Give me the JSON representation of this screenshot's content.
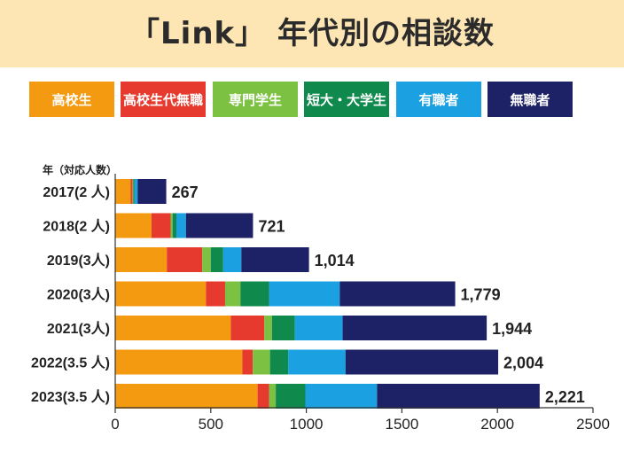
{
  "header": {
    "title": "「Link」 年代別の相談数"
  },
  "legend": [
    {
      "label": "高校生",
      "color": "#f39a10"
    },
    {
      "label": "高校生代無職",
      "color": "#e63a2e"
    },
    {
      "label": "専門学生",
      "color": "#7dc142"
    },
    {
      "label": "短大・大学生",
      "color": "#0f8a4c"
    },
    {
      "label": "有職者",
      "color": "#1ba1e2"
    },
    {
      "label": "無職者",
      "color": "#1d2166"
    }
  ],
  "chart_data": {
    "type": "bar",
    "orientation": "horizontal",
    "stacked": true,
    "title": "「Link」 年代別の相談数",
    "ylabel": "年（対応人数）",
    "xlabel": "",
    "xlim": [
      0,
      2500
    ],
    "xticks": [
      "0",
      "500",
      "1000",
      "1500",
      "2000",
      "2500"
    ],
    "categories": [
      "2017(2 人)",
      "2018(2 人)",
      "2019(3人)",
      "2020(3人)",
      "2021(3人)",
      "2022(3.5 人)",
      "2023(3.5 人)"
    ],
    "totals": [
      "267",
      "721",
      "1,014",
      "1,779",
      "1,944",
      "2,004",
      "2,221"
    ],
    "series": [
      {
        "name": "高校生",
        "color": "#f39a10",
        "values": [
          80,
          190,
          270,
          475,
          605,
          665,
          745
        ]
      },
      {
        "name": "高校生代無職",
        "color": "#e63a2e",
        "values": [
          10,
          100,
          185,
          100,
          175,
          55,
          60
        ]
      },
      {
        "name": "専門学生",
        "color": "#7dc142",
        "values": [
          5,
          10,
          45,
          80,
          40,
          90,
          35
        ]
      },
      {
        "name": "短大・大学生",
        "color": "#0f8a4c",
        "values": [
          5,
          20,
          65,
          150,
          120,
          95,
          155
        ]
      },
      {
        "name": "有職者",
        "color": "#1ba1e2",
        "values": [
          17,
          50,
          95,
          370,
          250,
          300,
          375
        ]
      },
      {
        "name": "無職者",
        "color": "#1d2166",
        "values": [
          150,
          351,
          354,
          604,
          754,
          799,
          851
        ]
      }
    ]
  }
}
